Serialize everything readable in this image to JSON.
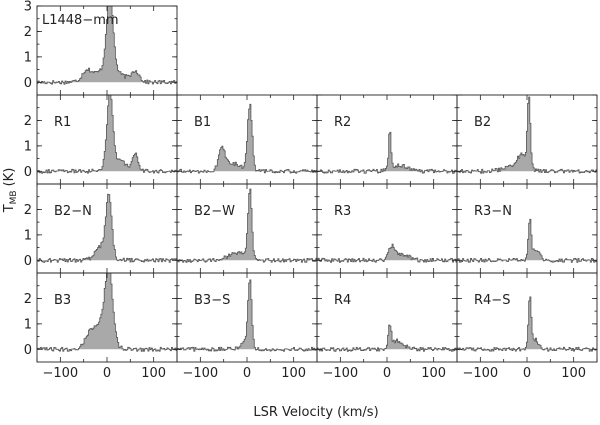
{
  "chart_data": {
    "type": "area",
    "xlabel": "LSR Velocity (km/s)",
    "ylabel_main": "T",
    "ylabel_sub": "MB",
    "ylabel_unit": "(K)",
    "xlim": [
      -150,
      150
    ],
    "ylim": [
      -0.5,
      3
    ],
    "xticks": [
      -100,
      0,
      100
    ],
    "yticks": [
      0,
      1,
      2,
      3
    ],
    "panels": [
      {
        "label": "L1448−mm",
        "row": 0,
        "col": 0,
        "components": [
          {
            "v": 5,
            "amp": 3.0,
            "w": 7
          },
          {
            "v": 0,
            "amp": 0.5,
            "w": 30
          },
          {
            "v": -45,
            "amp": 0.35,
            "w": 9
          },
          {
            "v": 60,
            "amp": 0.4,
            "w": 8
          }
        ]
      },
      {
        "label": "R1",
        "row": 1,
        "col": 0,
        "components": [
          {
            "v": 5,
            "amp": 2.8,
            "w": 6
          },
          {
            "v": 20,
            "amp": 0.45,
            "w": 20
          },
          {
            "v": 60,
            "amp": 0.6,
            "w": 6
          }
        ]
      },
      {
        "label": "B1",
        "row": 1,
        "col": 1,
        "components": [
          {
            "v": 5,
            "amp": 2.6,
            "w": 5
          },
          {
            "v": -55,
            "amp": 0.9,
            "w": 7
          },
          {
            "v": -30,
            "amp": 0.3,
            "w": 15
          }
        ]
      },
      {
        "label": "R2",
        "row": 1,
        "col": 2,
        "components": [
          {
            "v": 5,
            "amp": 1.6,
            "w": 2.5
          },
          {
            "v": 25,
            "amp": 0.25,
            "w": 15
          }
        ]
      },
      {
        "label": "B2",
        "row": 1,
        "col": 3,
        "components": [
          {
            "v": 3,
            "amp": 2.7,
            "w": 3
          },
          {
            "v": -10,
            "amp": 0.6,
            "w": 12
          },
          {
            "v": -35,
            "amp": 0.15,
            "w": 20
          }
        ]
      },
      {
        "label": "B2−N",
        "row": 2,
        "col": 0,
        "components": [
          {
            "v": 3,
            "amp": 2.2,
            "w": 6
          },
          {
            "v": -10,
            "amp": 0.6,
            "w": 14
          }
        ]
      },
      {
        "label": "B2−W",
        "row": 2,
        "col": 1,
        "components": [
          {
            "v": 5,
            "amp": 2.7,
            "w": 4
          },
          {
            "v": -20,
            "amp": 0.3,
            "w": 20
          }
        ]
      },
      {
        "label": "R3",
        "row": 2,
        "col": 2,
        "components": [
          {
            "v": 8,
            "amp": 0.5,
            "w": 6
          },
          {
            "v": 30,
            "amp": 0.25,
            "w": 15
          }
        ]
      },
      {
        "label": "R3−N",
        "row": 2,
        "col": 3,
        "components": [
          {
            "v": 5,
            "amp": 1.6,
            "w": 3
          },
          {
            "v": 18,
            "amp": 0.4,
            "w": 8
          }
        ]
      },
      {
        "label": "B3",
        "row": 3,
        "col": 0,
        "components": [
          {
            "v": 3,
            "amp": 2.7,
            "w": 8
          },
          {
            "v": -15,
            "amp": 1.0,
            "w": 18
          },
          {
            "v": -40,
            "amp": 0.3,
            "w": 10
          }
        ]
      },
      {
        "label": "B3−S",
        "row": 3,
        "col": 1,
        "components": [
          {
            "v": 5,
            "amp": 2.6,
            "w": 4
          },
          {
            "v": -5,
            "amp": 0.3,
            "w": 10
          }
        ]
      },
      {
        "label": "R4",
        "row": 3,
        "col": 2,
        "components": [
          {
            "v": 5,
            "amp": 0.9,
            "w": 3
          },
          {
            "v": 22,
            "amp": 0.35,
            "w": 12
          }
        ]
      },
      {
        "label": "R4−S",
        "row": 3,
        "col": 3,
        "components": [
          {
            "v": 5,
            "amp": 2.0,
            "w": 3
          },
          {
            "v": 15,
            "amp": 0.4,
            "w": 8
          }
        ]
      }
    ]
  }
}
